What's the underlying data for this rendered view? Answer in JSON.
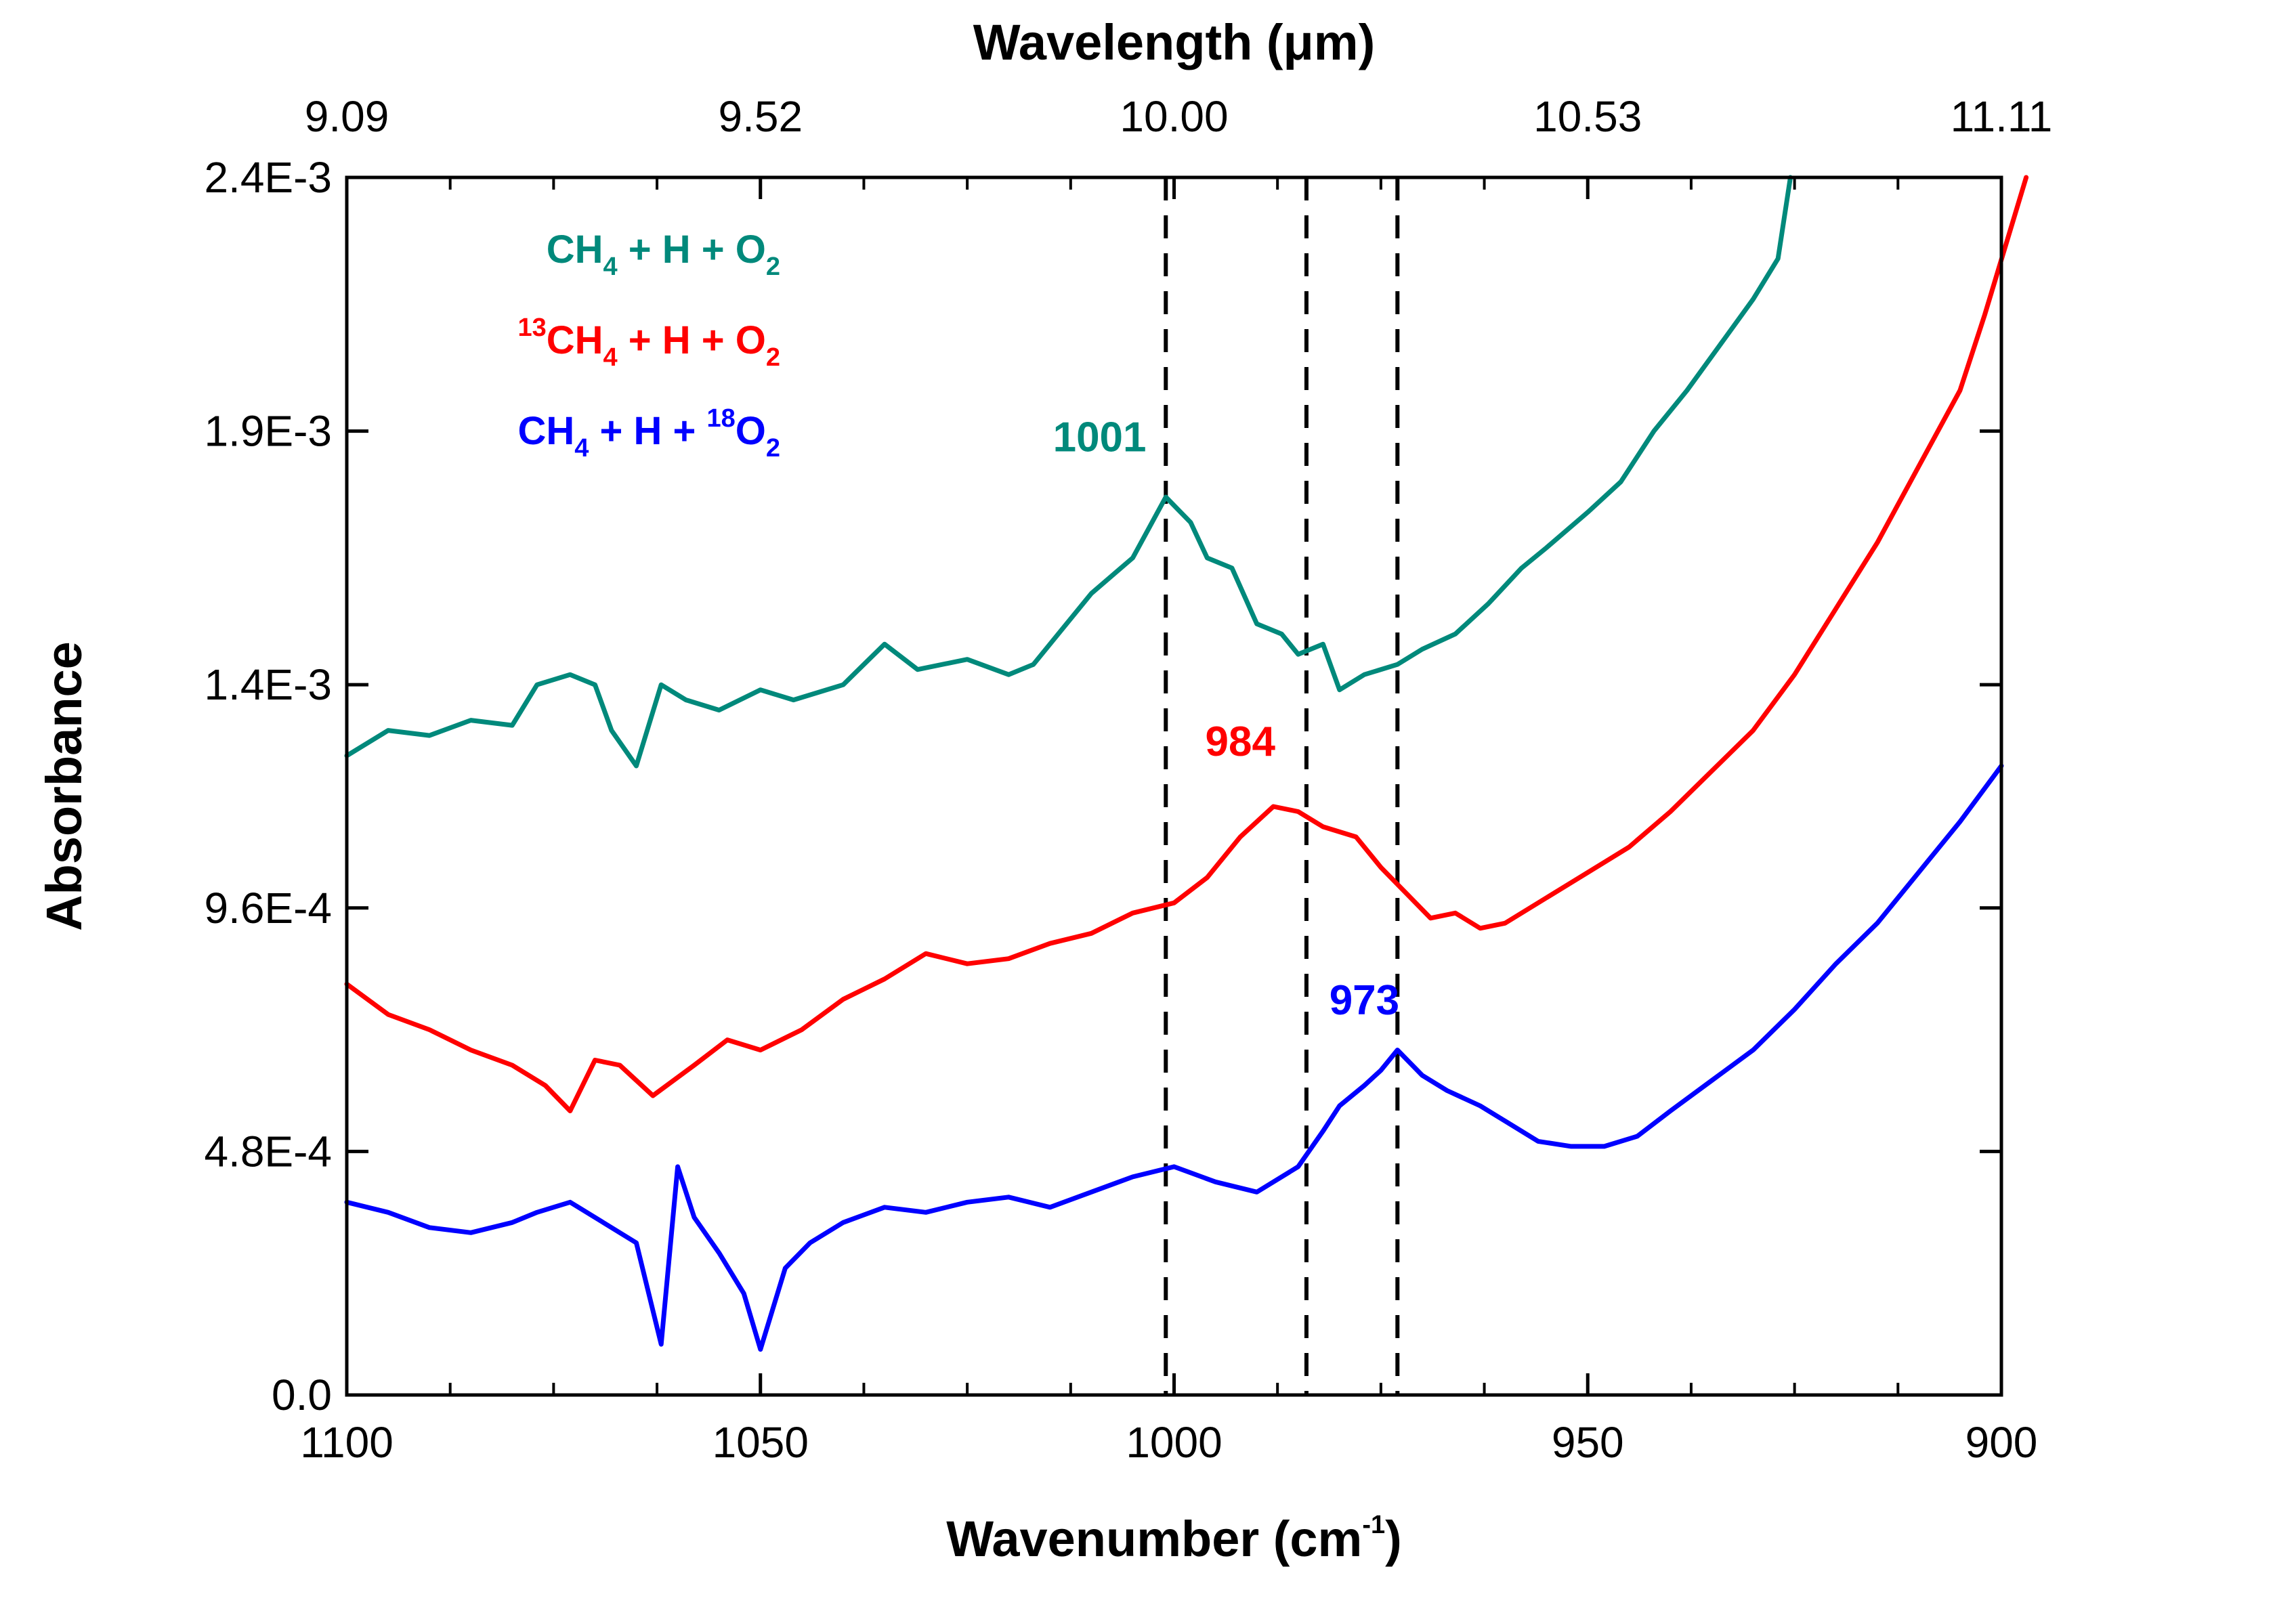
{
  "chart_data": {
    "type": "line",
    "title": "",
    "xlabel": "Wavenumber (cm",
    "xlabel_sup": "-1",
    "xlabel_end": ")",
    "x2label": "Wavelength (μm)",
    "ylabel": "Absorbance",
    "xlim": [
      1100,
      900
    ],
    "ylim": [
      0.0,
      0.0024
    ],
    "x_ticks": [
      1100,
      1050,
      1000,
      950,
      900
    ],
    "x_tick_labels": [
      "1100",
      "1050",
      "1000",
      "950",
      "900"
    ],
    "x2_tick_positions_cm": [
      1100,
      1050,
      1000,
      950,
      900
    ],
    "x2_tick_labels": [
      "9.09",
      "9.52",
      "10.00",
      "10.53",
      "11.11"
    ],
    "y_ticks": [
      0.0,
      0.00048,
      0.00096,
      0.0014,
      0.0019,
      0.0024
    ],
    "y_tick_labels": [
      "0.0",
      "4.8E-4",
      "9.6E-4",
      "1.4E-3",
      "1.9E-3",
      "2.4E-3"
    ],
    "dashed_lines_x": [
      1001,
      984,
      973
    ],
    "grid": false,
    "legend": {
      "position": "top-left",
      "entries": [
        {
          "parts": [
            {
              "t": "CH"
            },
            {
              "t": "4",
              "sub": true
            },
            {
              "t": " + H + O"
            },
            {
              "t": "2",
              "sub": true
            }
          ],
          "color": "#00897b"
        },
        {
          "parts": [
            {
              "t": "13",
              "sup": true
            },
            {
              "t": "CH"
            },
            {
              "t": "4",
              "sub": true
            },
            {
              "t": " + H + O"
            },
            {
              "t": "2",
              "sub": true
            }
          ],
          "color": "#ff0000"
        },
        {
          "parts": [
            {
              "t": "CH"
            },
            {
              "t": "4",
              "sub": true
            },
            {
              "t": " + H + "
            },
            {
              "t": "18",
              "sup": true
            },
            {
              "t": "O"
            },
            {
              "t": "2",
              "sub": true
            }
          ],
          "color": "#0000ff"
        }
      ]
    },
    "annotations": [
      {
        "text": "1001",
        "x": 1009,
        "y": 0.00186,
        "color": "#00897b"
      },
      {
        "text": "984",
        "x": 992,
        "y": 0.00126,
        "color": "#ff0000"
      },
      {
        "text": "973",
        "x": 977,
        "y": 0.00075,
        "color": "#0000ff"
      }
    ],
    "series": [
      {
        "name": "CH4 + H + O2",
        "color": "#00897b",
        "x": [
          1100,
          1095,
          1090,
          1085,
          1080,
          1077,
          1073,
          1070,
          1068,
          1065,
          1062,
          1059,
          1055,
          1050,
          1046,
          1040,
          1035,
          1031,
          1025,
          1020,
          1017,
          1014,
          1010,
          1005,
          1003,
          1001,
          998,
          996,
          993,
          990,
          987,
          985,
          982,
          980,
          977,
          973,
          970,
          966,
          962,
          958,
          955,
          950,
          946,
          942,
          938,
          934,
          930,
          927,
          925.5
        ],
        "y": [
          0.00126,
          0.00131,
          0.0013,
          0.00133,
          0.00132,
          0.0014,
          0.00142,
          0.0014,
          0.00131,
          0.00124,
          0.0014,
          0.00137,
          0.00135,
          0.00139,
          0.00137,
          0.0014,
          0.00148,
          0.00143,
          0.00145,
          0.00142,
          0.00144,
          0.0015,
          0.00158,
          0.00165,
          0.00171,
          0.00177,
          0.00172,
          0.00165,
          0.00163,
          0.00152,
          0.0015,
          0.00146,
          0.00148,
          0.00139,
          0.00142,
          0.00144,
          0.00147,
          0.0015,
          0.00156,
          0.00163,
          0.00167,
          0.00174,
          0.0018,
          0.0019,
          0.00198,
          0.00207,
          0.00216,
          0.00224,
          0.0024
        ]
      },
      {
        "name": "13CH4 + H + O2",
        "color": "#ff0000",
        "x": [
          1100,
          1095,
          1090,
          1085,
          1080,
          1076,
          1073,
          1070,
          1067,
          1063,
          1058,
          1054,
          1050,
          1045,
          1040,
          1035,
          1030,
          1025,
          1020,
          1015,
          1010,
          1005,
          1000,
          996,
          992,
          988,
          985,
          982,
          978,
          975,
          972,
          969,
          966,
          963,
          960,
          955,
          950,
          945,
          940,
          935,
          930,
          925,
          920,
          915,
          910,
          905,
          902,
          897
        ],
        "y": [
          0.00081,
          0.00075,
          0.00072,
          0.00068,
          0.00065,
          0.00061,
          0.00056,
          0.00066,
          0.00065,
          0.00059,
          0.00065,
          0.0007,
          0.00068,
          0.00072,
          0.00078,
          0.00082,
          0.00087,
          0.00085,
          0.00086,
          0.00089,
          0.00091,
          0.00095,
          0.00097,
          0.00102,
          0.0011,
          0.00116,
          0.00115,
          0.00112,
          0.0011,
          0.00104,
          0.00099,
          0.00094,
          0.00095,
          0.00092,
          0.00093,
          0.00098,
          0.00103,
          0.00108,
          0.00115,
          0.00123,
          0.00131,
          0.00142,
          0.00155,
          0.00168,
          0.00183,
          0.00198,
          0.00213,
          0.0024
        ]
      },
      {
        "name": "CH4 + H + 18O2",
        "color": "#0000ff",
        "x": [
          1100,
          1095,
          1090,
          1085,
          1080,
          1077,
          1073,
          1069,
          1065,
          1062,
          1060,
          1058,
          1055,
          1052,
          1050,
          1047,
          1044,
          1040,
          1035,
          1030,
          1025,
          1020,
          1015,
          1010,
          1005,
          1000,
          995,
          990,
          985,
          982,
          980,
          977,
          975,
          973,
          970,
          967,
          963,
          960,
          956,
          952,
          948,
          944,
          940,
          935,
          930,
          925,
          920,
          915,
          910,
          905,
          900
        ],
        "y": [
          0.00038,
          0.00036,
          0.00033,
          0.00032,
          0.00034,
          0.00036,
          0.00038,
          0.00034,
          0.0003,
          0.0001,
          0.00045,
          0.00035,
          0.00028,
          0.0002,
          9e-05,
          0.00025,
          0.0003,
          0.00034,
          0.00037,
          0.00036,
          0.00038,
          0.00039,
          0.00037,
          0.0004,
          0.00043,
          0.00045,
          0.00042,
          0.0004,
          0.00045,
          0.00052,
          0.00057,
          0.00061,
          0.00064,
          0.00068,
          0.00063,
          0.0006,
          0.00057,
          0.00054,
          0.0005,
          0.00049,
          0.00049,
          0.00051,
          0.00056,
          0.00062,
          0.00068,
          0.00076,
          0.00085,
          0.00093,
          0.00103,
          0.00113,
          0.00124
        ]
      }
    ]
  }
}
